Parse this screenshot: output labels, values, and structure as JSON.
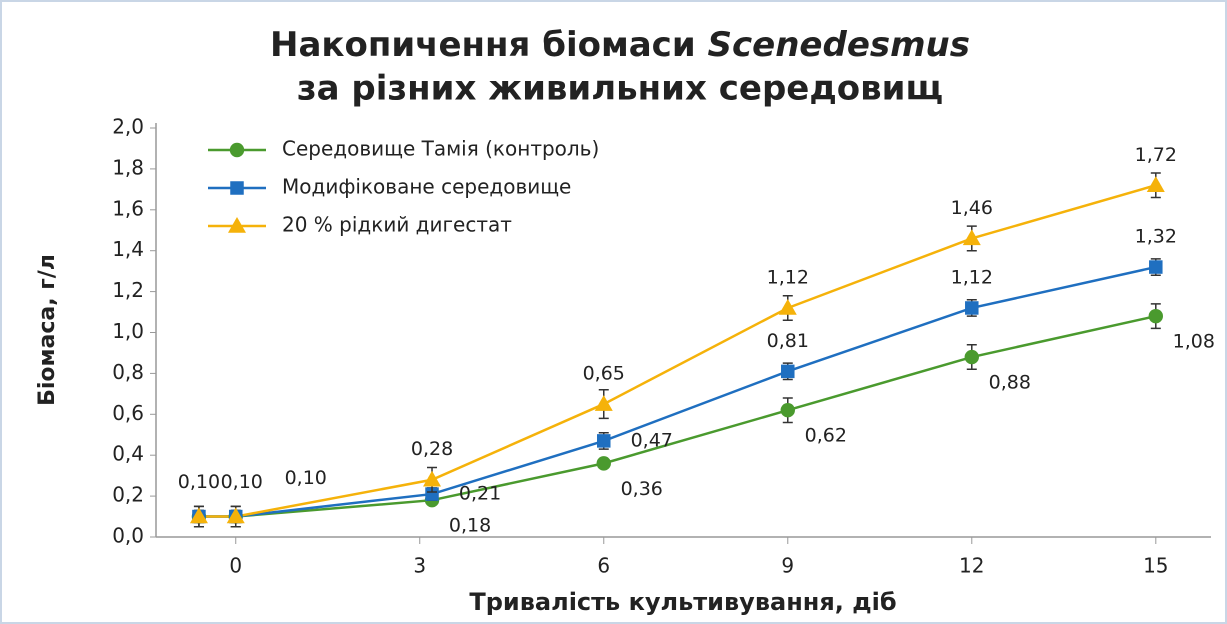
{
  "chart_data": {
    "type": "line",
    "title": [
      "Накопичення біомаси",
      "Scenedesmus",
      "за різних живильних середовищ"
    ],
    "x_label": "Тривалість культивування, діб",
    "y_label": "Біомаса, г/л",
    "x": [
      -0.6,
      0,
      3.2,
      6,
      9,
      12,
      15
    ],
    "xlim": [
      -1.3,
      15.9
    ],
    "xticks": [
      0,
      3,
      6,
      9,
      12,
      15
    ],
    "ylim": [
      0,
      2.0
    ],
    "yticks": [
      {
        "value": 0,
        "label": "0,0"
      },
      {
        "value": 0.2,
        "label": "0,2"
      },
      {
        "value": 0.4,
        "label": "0,4"
      },
      {
        "value": 0.6,
        "label": "0,6"
      },
      {
        "value": 0.8,
        "label": "0,8"
      },
      {
        "value": 1.0,
        "label": "1,0"
      },
      {
        "value": 1.2,
        "label": "1,2"
      },
      {
        "value": 1.4,
        "label": "1,4"
      },
      {
        "value": 1.6,
        "label": "1,6"
      },
      {
        "value": 1.8,
        "label": "1,8"
      },
      {
        "value": 2.0,
        "label": "2,0"
      }
    ],
    "legend": "upper left",
    "series": [
      {
        "name": "Середовище Тамія (контроль)",
        "color": "#4a9a2e",
        "marker": "circle",
        "values": [
          0.1,
          0.1,
          0.18,
          0.36,
          0.62,
          0.88,
          1.08
        ],
        "errors": [
          0.05,
          0.05,
          0.02,
          0.02,
          0.06,
          0.06,
          0.06
        ],
        "value_labels": [
          "0,10",
          null,
          "0,18",
          "0,36",
          "0,62",
          "0,88",
          "1,08"
        ]
      },
      {
        "name": "Модифіковане середовище",
        "color": "#1f6fc0",
        "marker": "square",
        "values": [
          0.1,
          0.1,
          0.21,
          0.47,
          0.81,
          1.12,
          1.32
        ],
        "errors": [
          0.03,
          0.03,
          0.03,
          0.04,
          0.04,
          0.04,
          0.04
        ],
        "value_labels": [
          null,
          "0,10",
          "0,21",
          "0,47",
          "0,81",
          "1,12",
          "1,32"
        ]
      },
      {
        "name": "20 % рідкий дигестат",
        "color": "#f5b20a",
        "marker": "triangle",
        "values": [
          0.1,
          0.1,
          0.28,
          0.65,
          1.12,
          1.46,
          1.72
        ],
        "errors": [
          0.05,
          0.05,
          0.06,
          0.07,
          0.06,
          0.06,
          0.06
        ],
        "value_labels": [
          null,
          "0,10",
          "0,28",
          "0,65",
          "1,12",
          "1,46",
          "1,72"
        ]
      }
    ]
  }
}
